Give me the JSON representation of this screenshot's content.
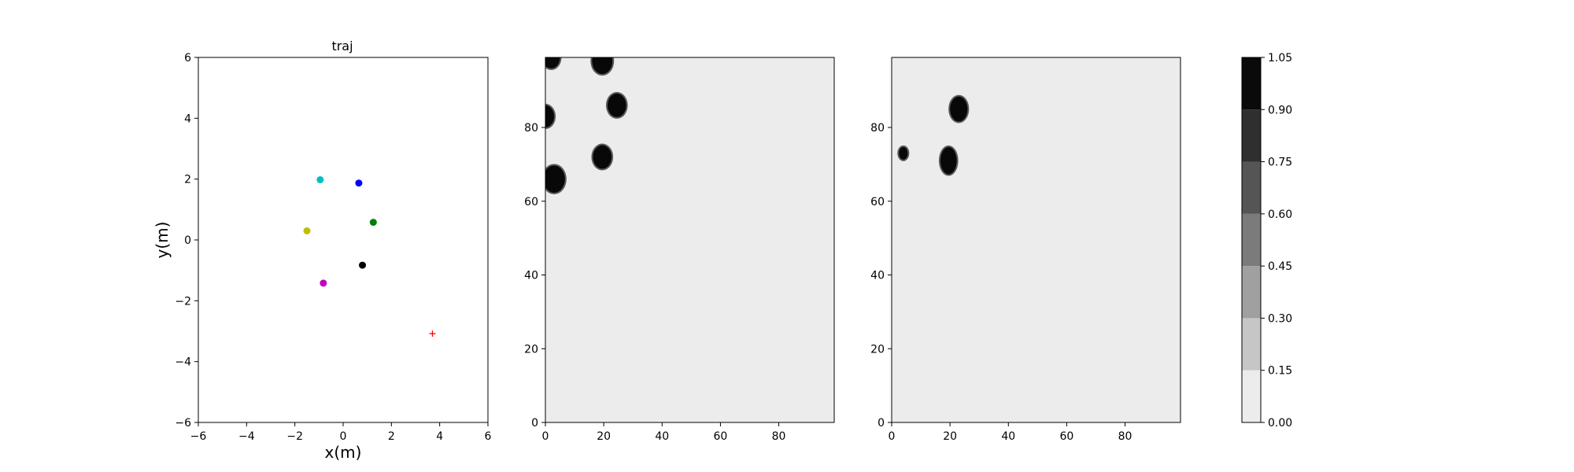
{
  "chart_data": [
    {
      "type": "scatter",
      "title": "traj",
      "xlabel": "x(m)",
      "ylabel": "y(m)",
      "xlim": [
        -6,
        6
      ],
      "ylim": [
        -6,
        6
      ],
      "xticks": [
        -6,
        -4,
        -2,
        0,
        2,
        4,
        6
      ],
      "yticks": [
        -6,
        -4,
        -2,
        0,
        2,
        4,
        6
      ],
      "points": [
        {
          "x": -0.95,
          "y": 1.98,
          "color": "#00bfbf",
          "marker": "o"
        },
        {
          "x": 0.65,
          "y": 1.87,
          "color": "#0000ff",
          "marker": "o"
        },
        {
          "x": 1.25,
          "y": 0.58,
          "color": "#008000",
          "marker": "o"
        },
        {
          "x": -1.5,
          "y": 0.3,
          "color": "#bfbf00",
          "marker": "o"
        },
        {
          "x": 0.8,
          "y": -0.83,
          "color": "#000000",
          "marker": "o"
        },
        {
          "x": -0.82,
          "y": -1.42,
          "color": "#bf00bf",
          "marker": "o"
        },
        {
          "x": 3.7,
          "y": -3.08,
          "color": "#ff0000",
          "marker": "+"
        }
      ]
    },
    {
      "type": "heatmap",
      "xlim": [
        0,
        99
      ],
      "ylim": [
        0,
        99
      ],
      "xticks": [
        0,
        20,
        40,
        60,
        80
      ],
      "yticks": [
        0,
        20,
        40,
        60,
        80
      ],
      "background_value": 0.05,
      "blobs": [
        {
          "x": 2,
          "y": 99,
          "r": 3
        },
        {
          "x": 19.5,
          "y": 98,
          "r": 3.5
        },
        {
          "x": 24.5,
          "y": 86,
          "r": 3.2
        },
        {
          "x": 0,
          "y": 83,
          "r": 3
        },
        {
          "x": 19.5,
          "y": 72,
          "r": 3.2
        },
        {
          "x": 3,
          "y": 66,
          "r": 3.7
        }
      ]
    },
    {
      "type": "heatmap",
      "xlim": [
        0,
        99
      ],
      "ylim": [
        0,
        99
      ],
      "xticks": [
        0,
        20,
        40,
        60,
        80
      ],
      "yticks": [
        0,
        20,
        40,
        60,
        80
      ],
      "background_value": 0.05,
      "blobs": [
        {
          "x": 23,
          "y": 85,
          "rx": 3,
          "ry": 3.4
        },
        {
          "x": 4,
          "y": 73,
          "rx": 1.5,
          "ry": 1.7
        },
        {
          "x": 19.5,
          "y": 71,
          "rx": 2.8,
          "ry": 3.7
        }
      ]
    },
    {
      "type": "colorbar",
      "levels": [
        0.0,
        0.15,
        0.3,
        0.45,
        0.6,
        0.75,
        0.9,
        1.05
      ],
      "tick_labels": [
        "0.00",
        "0.15",
        "0.30",
        "0.45",
        "0.60",
        "0.75",
        "0.90",
        "1.05"
      ],
      "colors": [
        "#ececec",
        "#c6c6c6",
        "#a0a0a0",
        "#7b7b7b",
        "#555555",
        "#2f2f2f",
        "#0a0a0a"
      ]
    }
  ]
}
